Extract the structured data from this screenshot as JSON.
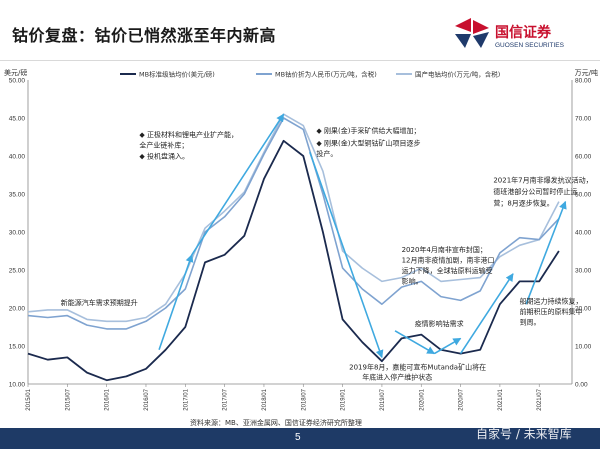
{
  "title": "钴价复盘：钴价已悄然涨至年内新高",
  "brand": {
    "name_cn": "国信证券",
    "name_en": "GUOSEN SECURITIES",
    "red": "#c8102e",
    "navy": "#1f3a6b"
  },
  "source": "资料来源：MB、亚洲金属网、国信证券经济研究所整理",
  "page_number": "5",
  "watermark": "自家号 / 未来智库",
  "chart_data": {
    "type": "line",
    "ylabel_left": "美元/磅",
    "ylabel_right": "万元/吨",
    "ylim_left": [
      10,
      50
    ],
    "ylim_right": [
      0,
      80
    ],
    "yticks_left": [
      "10.00",
      "15.00",
      "20.00",
      "25.00",
      "30.00",
      "35.00",
      "40.00",
      "45.00",
      "50.00"
    ],
    "yticks_right": [
      "0.00",
      "10.00",
      "20.00",
      "30.00",
      "40.00",
      "50.00",
      "60.00",
      "70.00",
      "80.00"
    ],
    "xticks": [
      "2015/01",
      "2015/07",
      "2016/01",
      "2016/07",
      "2017/01",
      "2017/07",
      "2018/01",
      "2018/07",
      "2019/01",
      "2019/07",
      "2020/01",
      "2020/07",
      "2021/01",
      "2021/07"
    ],
    "x": [
      "2015/01",
      "2015/04",
      "2015/07",
      "2015/10",
      "2016/01",
      "2016/04",
      "2016/07",
      "2016/10",
      "2017/01",
      "2017/04",
      "2017/07",
      "2017/10",
      "2018/01",
      "2018/04",
      "2018/07",
      "2018/10",
      "2019/01",
      "2019/04",
      "2019/07",
      "2019/10",
      "2020/01",
      "2020/04",
      "2020/07",
      "2020/10",
      "2021/01",
      "2021/04",
      "2021/07",
      "2021/10"
    ],
    "series": [
      {
        "name": "MB标准级钴均价(美元/磅)",
        "axis": "left",
        "color": "#1b2a4e",
        "values": [
          14.0,
          13.2,
          13.5,
          11.5,
          10.5,
          11.0,
          12.0,
          14.5,
          17.5,
          26.0,
          27.0,
          29.5,
          37.0,
          42.0,
          40.0,
          30.0,
          18.5,
          15.5,
          13.0,
          16.0,
          16.5,
          14.5,
          14.0,
          14.5,
          20.5,
          23.5,
          23.5,
          27.5
        ]
      },
      {
        "name": "MB钴价折为人民币(万元/吨，含税)",
        "axis": "right",
        "color": "#7fa3d0",
        "values": [
          18.0,
          17.5,
          18.0,
          15.5,
          14.5,
          14.5,
          16.5,
          20.0,
          25.0,
          40.0,
          44.0,
          50.0,
          60.5,
          70.0,
          67.0,
          50.0,
          30.5,
          25.0,
          21.0,
          25.5,
          27.0,
          23.0,
          22.0,
          24.5,
          34.5,
          38.5,
          38.0,
          43.5
        ]
      },
      {
        "name": "国产电钴均价(万元/吨，含税)",
        "axis": "right",
        "color": "#a7bfdc",
        "values": [
          19.0,
          19.5,
          19.5,
          17.0,
          16.5,
          16.5,
          17.5,
          21.0,
          29.0,
          41.0,
          45.5,
          50.5,
          61.0,
          71.0,
          68.0,
          56.0,
          35.0,
          30.5,
          27.0,
          28.0,
          30.5,
          27.0,
          27.5,
          28.0,
          33.5,
          36.5,
          38.0,
          48.0
        ]
      }
    ],
    "annotations": [
      {
        "text": "◆ 正极材料和锂电产业扩产能，",
        "x": "2016/06",
        "y_left": 42.5
      },
      {
        "text": "  全产业链补库；",
        "x": "2016/06",
        "y_left": 41.1
      },
      {
        "text": "◆ 投机盘涌入。",
        "x": "2016/06",
        "y_left": 39.7
      },
      {
        "text": "◆ 刚果(金)手采矿供给大幅增加；",
        "x": "2018/09",
        "y_left": 43.0
      },
      {
        "text": "◆ 刚果(金)大型铜钴矿山项目逐步",
        "x": "2018/09",
        "y_left": 41.4
      },
      {
        "text": "  投产。",
        "x": "2018/09",
        "y_left": 40.0
      },
      {
        "text": "新能源汽车需求预期提升",
        "x": "2015/06",
        "y_left": 20.4
      },
      {
        "text": "2021年7月南非爆发抗议活动，",
        "x": "2020/12",
        "y_left": 36.5
      },
      {
        "text": "德班港部分公司暂时停止运",
        "x": "2020/12",
        "y_left": 35.0
      },
      {
        "text": "营；8月逐步恢复。",
        "x": "2020/12",
        "y_left": 33.5
      },
      {
        "text": "2020年4月南非宣布封国；",
        "x": "2019/10",
        "y_left": 27.4
      },
      {
        "text": "12月南非疫情加剧，南非港口",
        "x": "2019/10",
        "y_left": 26.0
      },
      {
        "text": "运力下降，全球钴原料运输受",
        "x": "2019/10",
        "y_left": 24.6
      },
      {
        "text": "影响。",
        "x": "2019/10",
        "y_left": 23.2
      },
      {
        "text": "船期运力持续恢复，",
        "x": "2021/04",
        "y_left": 20.6
      },
      {
        "text": "前期积压的原料集中",
        "x": "2021/04",
        "y_left": 19.2
      },
      {
        "text": "到周。",
        "x": "2021/04",
        "y_left": 17.8
      },
      {
        "text": "疫情影响钴需求",
        "x": "2019/12",
        "y_left": 17.6
      },
      {
        "text": "2019年8月，嘉能可宣布Mutanda矿山将在",
        "x": "2019/02",
        "y_left": 11.9
      },
      {
        "text": "年底进入停产维护状态",
        "x": "2019/04",
        "y_left": 10.6
      }
    ]
  }
}
